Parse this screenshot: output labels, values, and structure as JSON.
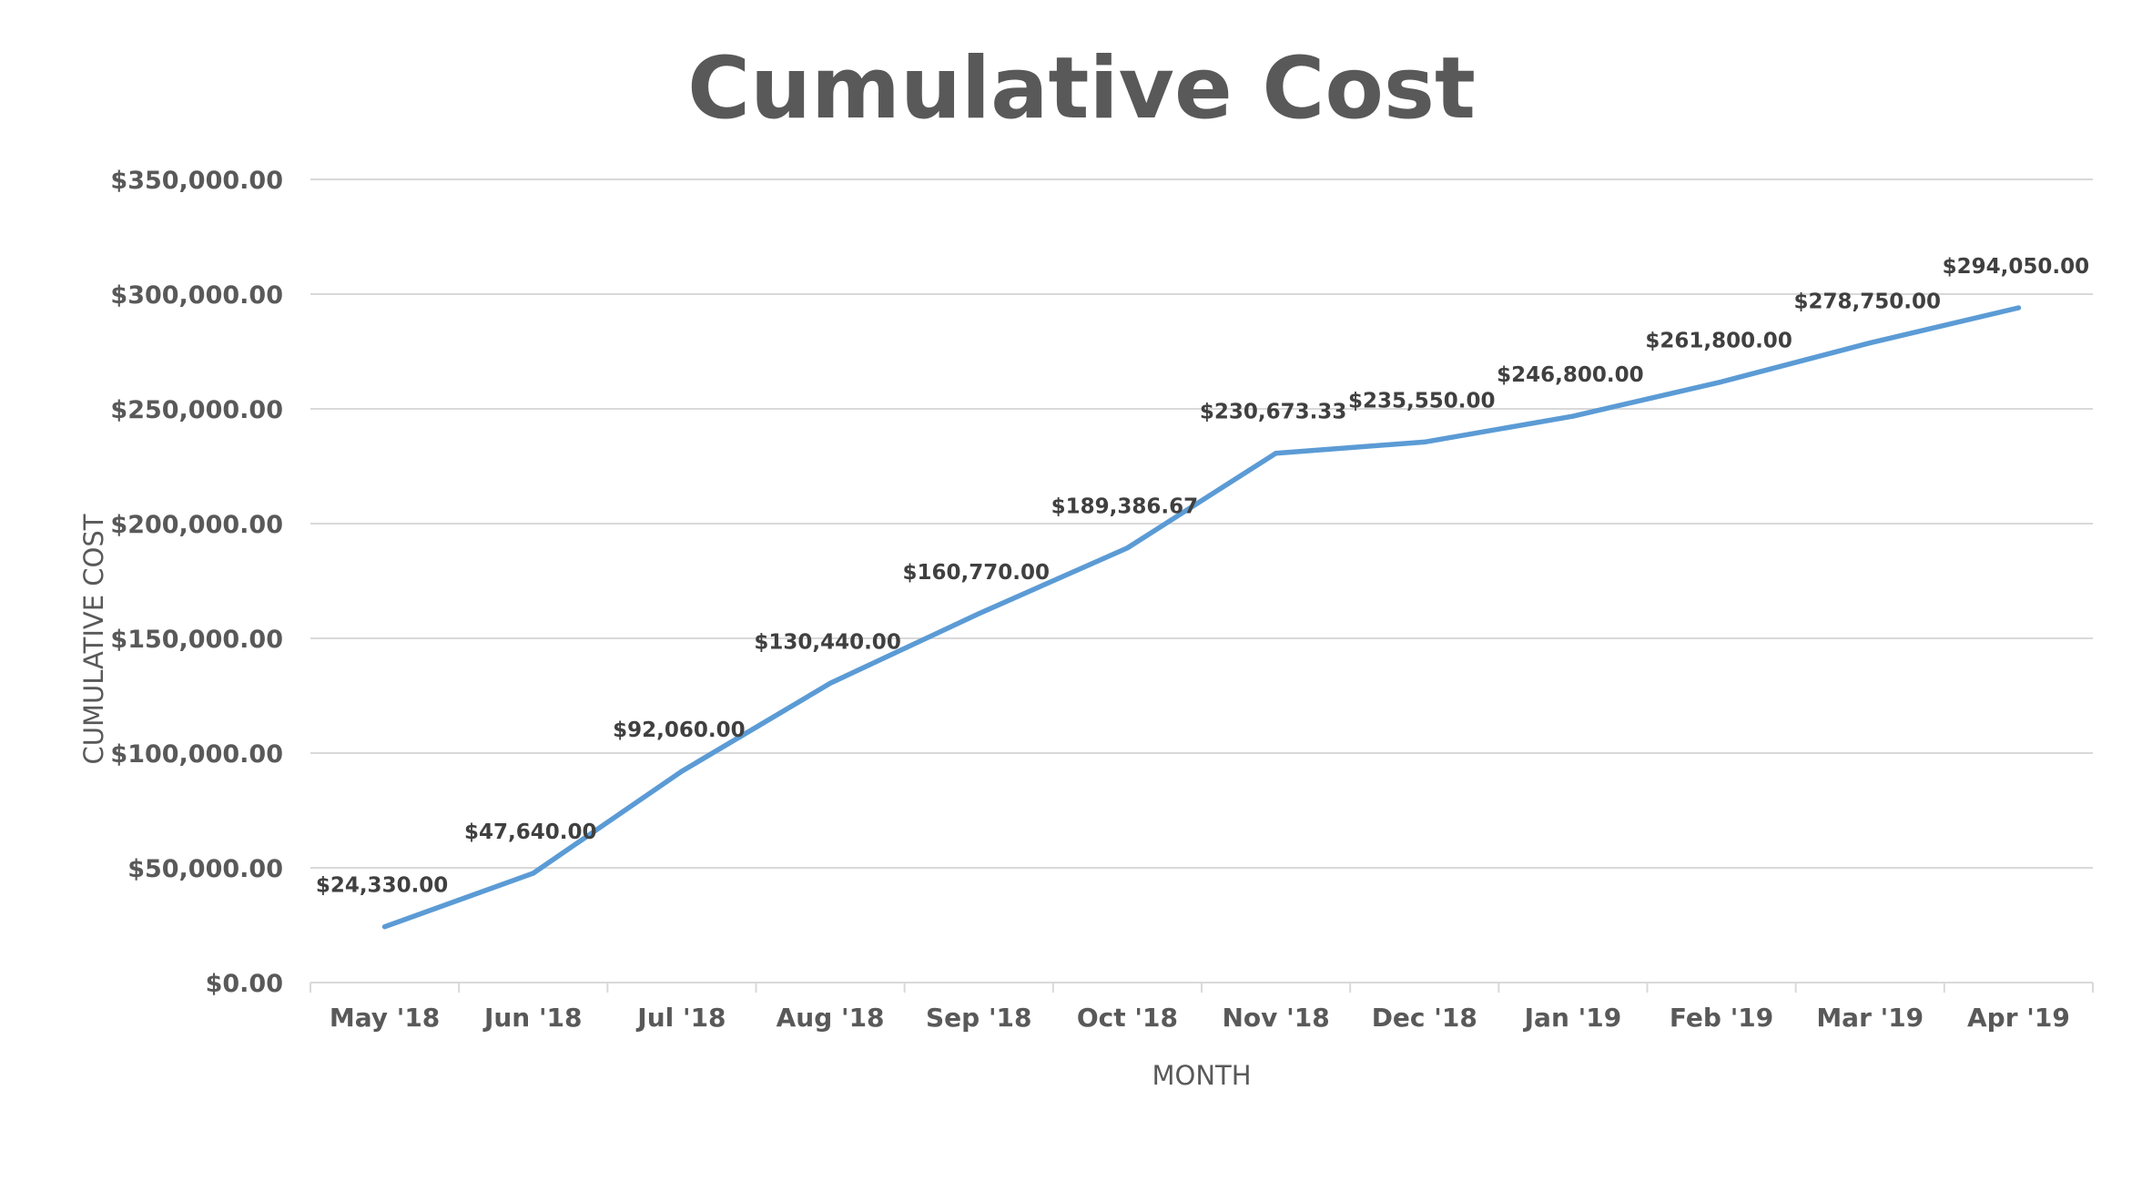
{
  "chart_data": {
    "type": "line",
    "title": "Cumulative Cost",
    "xlabel": "MONTH",
    "ylabel": "CUMULATIVE COST",
    "categories": [
      "May '18",
      "Jun '18",
      "Jul '18",
      "Aug '18",
      "Sep '18",
      "Oct '18",
      "Nov '18",
      "Dec '18",
      "Jan '19",
      "Feb '19",
      "Mar '19",
      "Apr '19"
    ],
    "series": [
      {
        "values": [
          24330.0,
          47640.0,
          92060.0,
          130440.0,
          160770.0,
          189386.67,
          230673.33,
          235550.0,
          246800.0,
          261800.0,
          278750.0,
          294050.0
        ],
        "labels": [
          "$24,330.00",
          "$47,640.00",
          "$92,060.00",
          "$130,440.00",
          "$160,770.00",
          "$189,386.67",
          "$230,673.33",
          "$235,550.00",
          "$246,800.00",
          "$261,800.00",
          "$278,750.00",
          "$294,050.00"
        ],
        "color": "#5b9bd5"
      }
    ],
    "ylim": [
      0,
      350000
    ],
    "yticks": [
      0,
      50000,
      100000,
      150000,
      200000,
      250000,
      300000,
      350000
    ],
    "ytick_labels": [
      "$0.00",
      "$50,000.00",
      "$100,000.00",
      "$150,000.00",
      "$200,000.00",
      "$250,000.00",
      "$300,000.00",
      "$350,000.00"
    ],
    "grid": true,
    "legend": "none"
  }
}
